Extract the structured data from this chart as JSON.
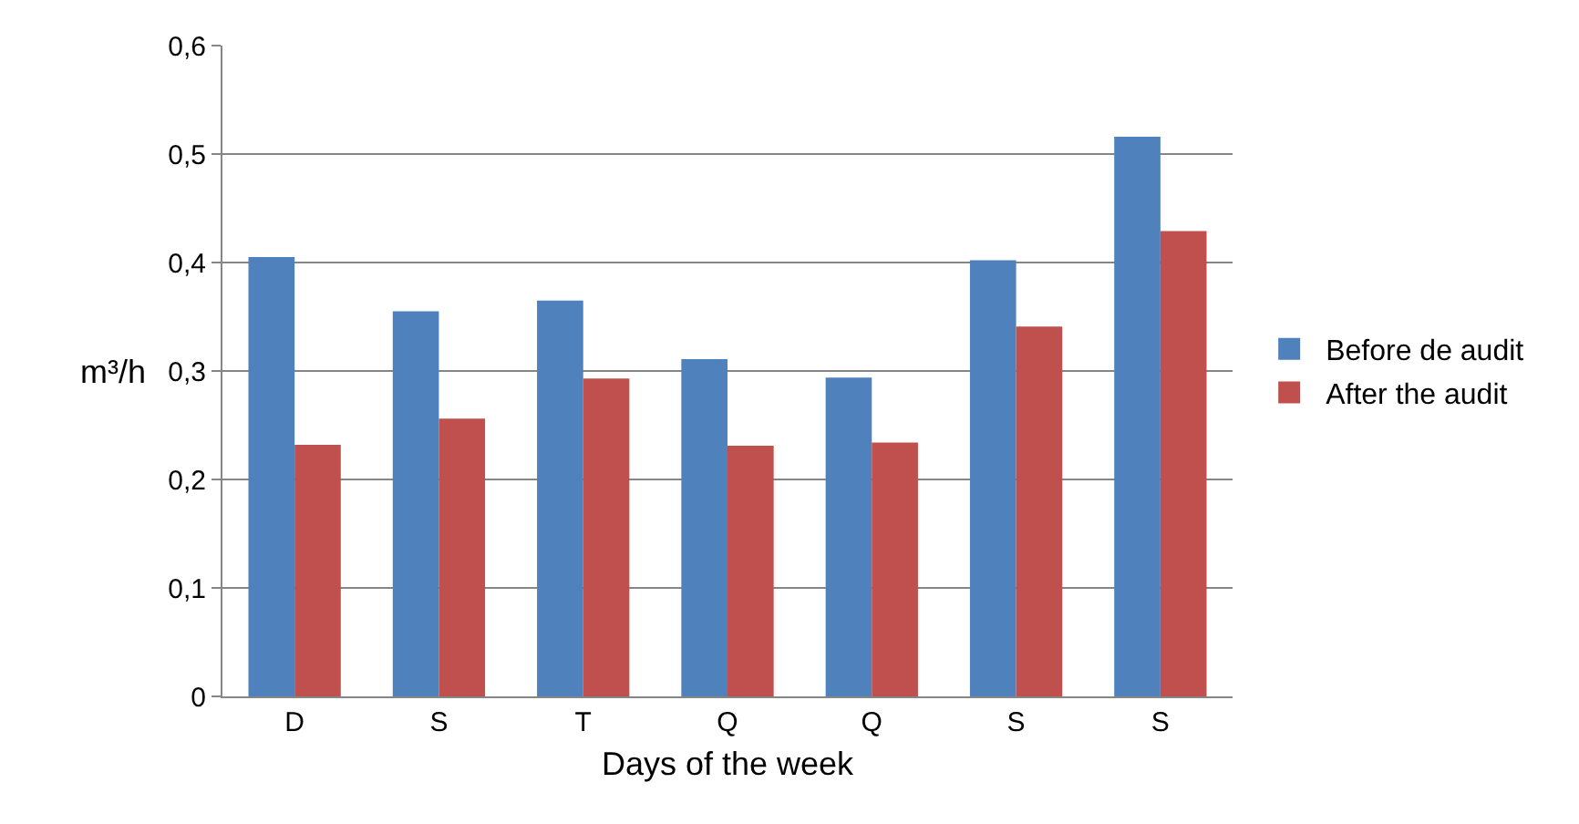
{
  "chart_data": {
    "type": "bar",
    "xlabel": "Days of the week",
    "ylabel": "m³/h",
    "categories": [
      "D",
      "S",
      "T",
      "Q",
      "Q",
      "S",
      "S"
    ],
    "series": [
      {
        "name": "Before de audit",
        "color": "#4f81bd",
        "values": [
          0.405,
          0.355,
          0.365,
          0.311,
          0.294,
          0.402,
          0.516
        ]
      },
      {
        "name": "After the audit",
        "color": "#c0504d",
        "values": [
          0.232,
          0.256,
          0.293,
          0.231,
          0.234,
          0.341,
          0.429
        ]
      }
    ],
    "ylim": [
      0,
      0.6
    ],
    "yticks": [
      {
        "value": 0,
        "label": "0"
      },
      {
        "value": 0.1,
        "label": "0,1"
      },
      {
        "value": 0.2,
        "label": "0,2"
      },
      {
        "value": 0.3,
        "label": "0,3"
      },
      {
        "value": 0.4,
        "label": "0,4"
      },
      {
        "value": 0.5,
        "label": "0,5"
      },
      {
        "value": 0.6,
        "label": "0,6"
      }
    ],
    "grid": "y",
    "legend": "right"
  }
}
